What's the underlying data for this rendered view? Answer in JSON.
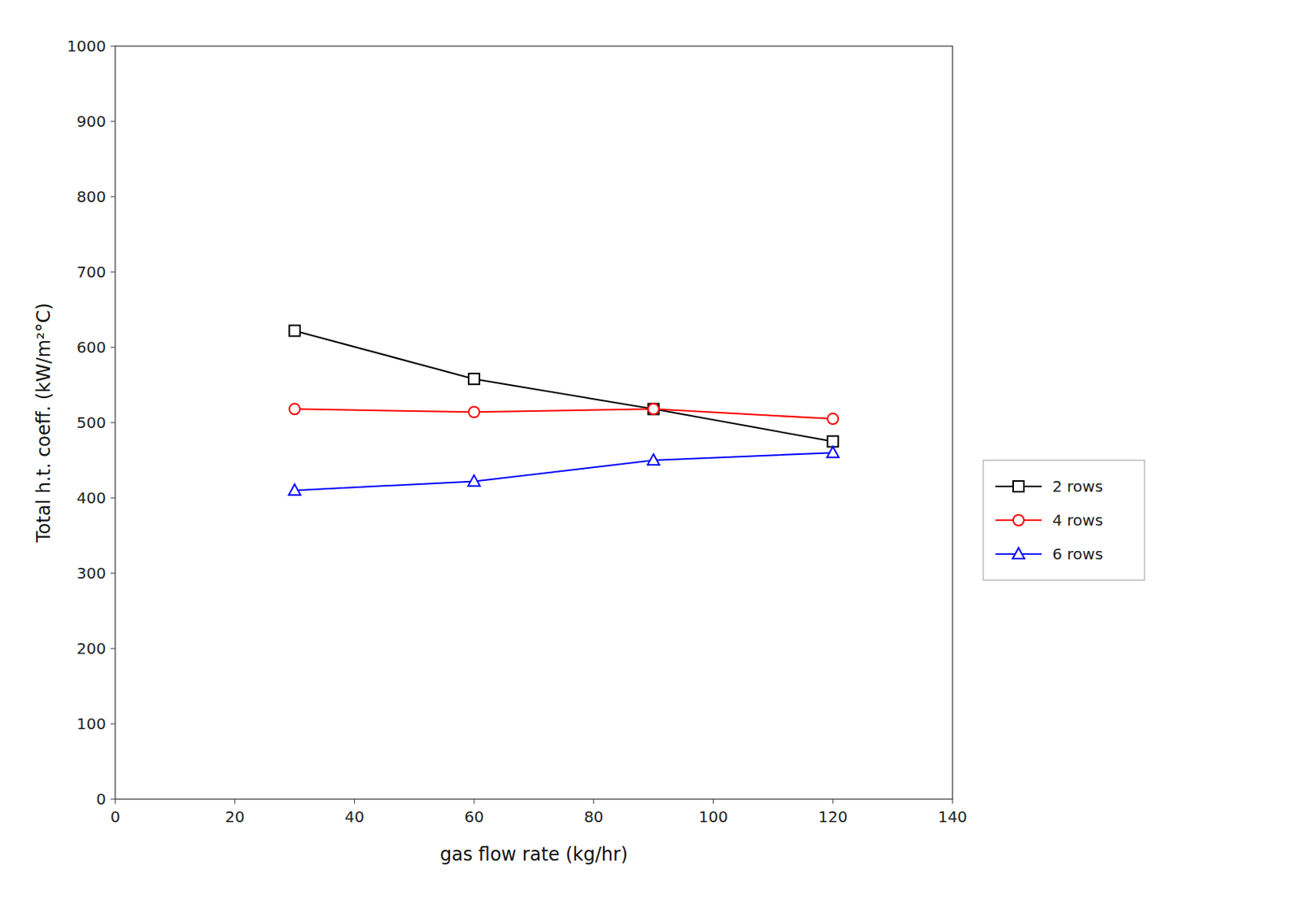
{
  "chart_data": {
    "type": "line",
    "xlabel": "gas flow rate (kg/hr)",
    "ylabel": "Total h.t. coeff.  (kW/m²°C)",
    "x": [
      30,
      60,
      90,
      120
    ],
    "series": [
      {
        "name": "2 rows",
        "color": "#000000",
        "marker": "square",
        "values": [
          622,
          558,
          518,
          475
        ]
      },
      {
        "name": "4 rows",
        "color": "#ff0000",
        "marker": "circle",
        "values": [
          518,
          514,
          518,
          505
        ]
      },
      {
        "name": "6 rows",
        "color": "#0000ff",
        "marker": "triangle",
        "values": [
          410,
          422,
          450,
          460
        ]
      }
    ],
    "xlim": [
      0,
      140
    ],
    "ylim": [
      0,
      1000
    ],
    "xticks": [
      0,
      20,
      40,
      60,
      80,
      100,
      120,
      140
    ],
    "yticks": [
      0,
      100,
      200,
      300,
      400,
      500,
      600,
      700,
      800,
      900,
      1000
    ],
    "grid": false,
    "legend": "right"
  }
}
